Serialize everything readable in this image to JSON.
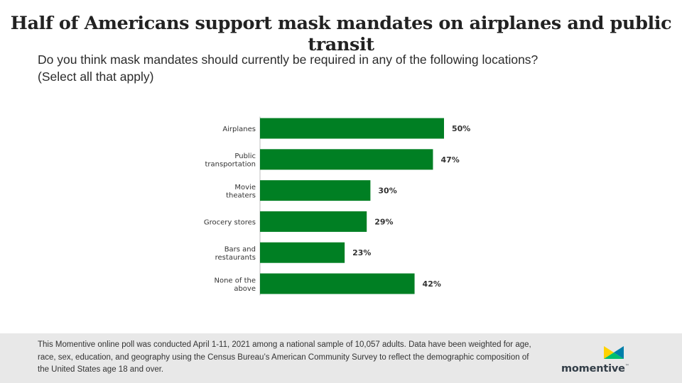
{
  "title": "Half of Americans support mask mandates on airplanes and public transit",
  "subtitle_lines": [
    "Do you think mask mandates should currently be required in any of the following locations?",
    "(Select all that apply)"
  ],
  "chart_data": {
    "type": "bar",
    "orientation": "horizontal",
    "categories": [
      [
        "Airplanes"
      ],
      [
        "Public",
        "transportation"
      ],
      [
        "Movie",
        "theaters"
      ],
      [
        "Grocery stores"
      ],
      [
        "Bars and",
        "restaurants"
      ],
      [
        "None of the",
        "above"
      ]
    ],
    "values": [
      50,
      47,
      30,
      29,
      23,
      42
    ],
    "value_labels": [
      "50%",
      "47%",
      "30%",
      "29%",
      "23%",
      "42%"
    ],
    "bar_color": "#007f23",
    "grid": false,
    "legend": "none"
  },
  "footer": {
    "note": "This Momentive online poll was conducted April 1-11, 2021 among a national sample of 10,057 adults. Data have been weighted for age, race, sex, education, and geography using the Census Bureau’s American Community Survey to reflect the demographic composition of the United States age 18 and over."
  },
  "logo": {
    "wordmark": "momentive",
    "trademark": "™",
    "icon": "momentive-logo-icon",
    "colors": [
      "#ffd200",
      "#00bf6f",
      "#007faa"
    ]
  }
}
